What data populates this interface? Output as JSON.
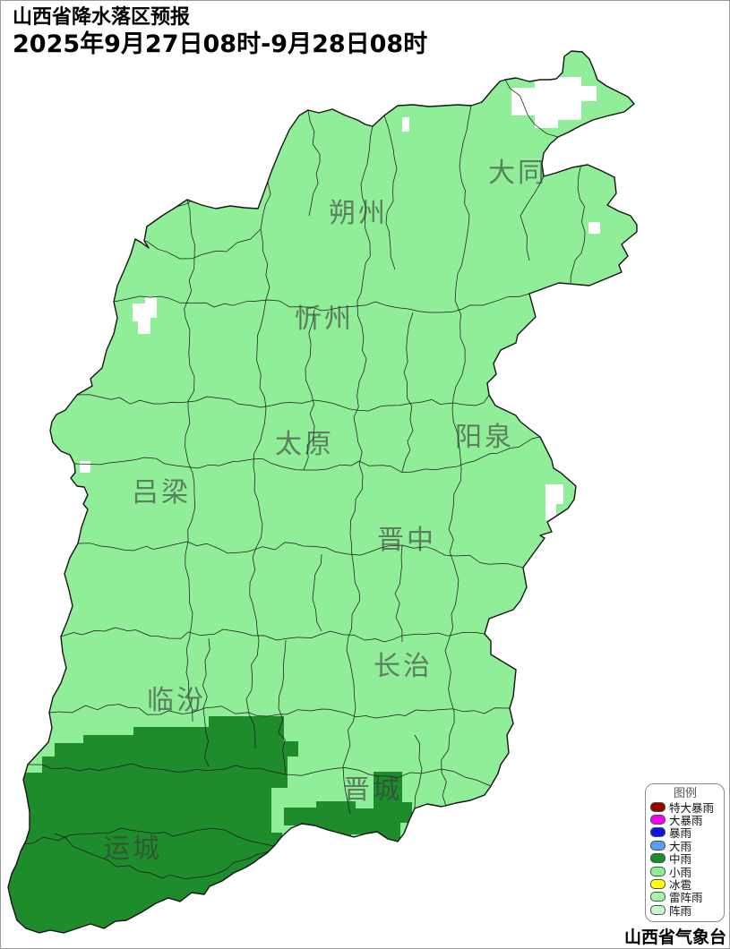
{
  "title": {
    "line1": "山西省降水落区预报",
    "line2": "2025年9月27日08时-9月28日08时"
  },
  "map": {
    "labels": [
      {
        "text": "大同"
      },
      {
        "text": "朔州"
      },
      {
        "text": "忻州"
      },
      {
        "text": "太原"
      },
      {
        "text": "阳泉"
      },
      {
        "text": "吕梁"
      },
      {
        "text": "晋中"
      },
      {
        "text": "长治"
      },
      {
        "text": "临汾"
      },
      {
        "text": "晋城"
      },
      {
        "text": "运城"
      }
    ],
    "colors": {
      "light_rain": "#90EE98",
      "moderate_rain": "#1E8C2A",
      "no_rain": "#FFFFFF",
      "boundary": "#141414"
    }
  },
  "legend": {
    "title": "图例",
    "items": [
      {
        "label": "特大暴雨",
        "color": "#990000"
      },
      {
        "label": "大暴雨",
        "color": "#F400F4"
      },
      {
        "label": "暴雨",
        "color": "#1010EE"
      },
      {
        "label": "大雨",
        "color": "#58A0F0"
      },
      {
        "label": "中雨",
        "color": "#1E8C2A"
      },
      {
        "label": "小雨",
        "color": "#90EE98"
      },
      {
        "label": "冰雹",
        "color": "#FFFF00"
      },
      {
        "label": "雷阵雨",
        "color": "#A6F3B0"
      },
      {
        "label": "阵雨",
        "color": "#C9F6D0"
      }
    ]
  },
  "footer": {
    "source": "山西省气象台"
  }
}
